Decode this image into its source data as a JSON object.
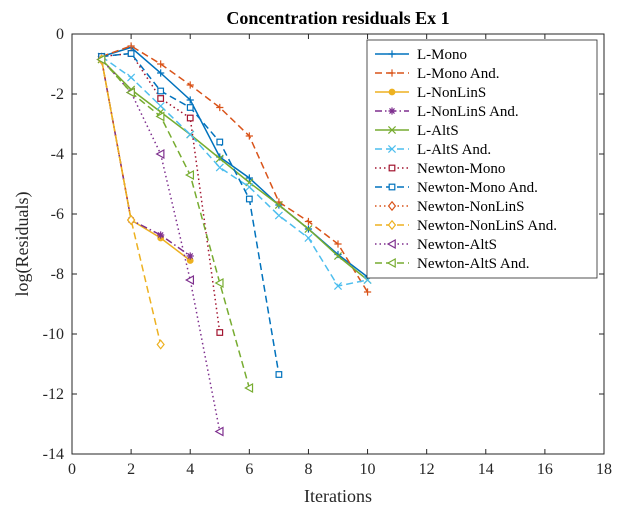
{
  "chart_data": {
    "type": "line",
    "title": "Concentration residuals Ex 1",
    "xlabel": "Iterations",
    "ylabel": "log(Residuals)",
    "xlim": [
      0,
      18
    ],
    "ylim": [
      -14,
      0
    ],
    "xticks": [
      "0",
      "2",
      "4",
      "6",
      "8",
      "10",
      "12",
      "14",
      "16",
      "18"
    ],
    "yticks": [
      "0",
      "-2",
      "-4",
      "-6",
      "-8",
      "-10",
      "-12",
      "-14"
    ],
    "grid": false,
    "legend_position": "top-right",
    "series": [
      {
        "name": "L-Mono",
        "color": "#0072BD",
        "dash": "solid",
        "marker": "plus",
        "x": [
          1,
          2,
          3,
          4,
          5,
          6,
          7,
          8,
          9,
          10
        ],
        "y": [
          -0.75,
          -0.45,
          -1.3,
          -2.2,
          -4.1,
          -4.8,
          -5.7,
          -6.5,
          -7.35,
          -8.1
        ]
      },
      {
        "name": "L-Mono And.",
        "color": "#D95319",
        "dash": "dashed",
        "marker": "plus",
        "x": [
          1,
          2,
          3,
          4,
          5,
          6,
          7,
          8,
          9,
          10
        ],
        "y": [
          -0.75,
          -0.4,
          -1.0,
          -1.7,
          -2.45,
          -3.4,
          -5.6,
          -6.25,
          -7.0,
          -8.6
        ]
      },
      {
        "name": "L-NonLinS",
        "color": "#EDB120",
        "dash": "solid",
        "marker": "dot",
        "x": [
          1,
          2,
          3,
          4
        ],
        "y": [
          -0.85,
          -6.2,
          -6.8,
          -7.55
        ]
      },
      {
        "name": "L-NonLinS And.",
        "color": "#7E2F8E",
        "dash": "dashdot",
        "marker": "star",
        "x": [
          1,
          2,
          3,
          4
        ],
        "y": [
          -0.85,
          -6.2,
          -6.7,
          -7.4
        ]
      },
      {
        "name": "L-AltS",
        "color": "#77AC30",
        "dash": "solid",
        "marker": "x",
        "x": [
          1,
          2,
          3,
          4,
          5,
          6,
          7,
          8,
          9,
          10
        ],
        "y": [
          -0.85,
          -1.85,
          -2.6,
          -3.35,
          -4.15,
          -4.95,
          -5.7,
          -6.5,
          -7.4,
          -8.2
        ]
      },
      {
        "name": "L-AltS And.",
        "color": "#4DBEEE",
        "dash": "dashed",
        "marker": "x",
        "x": [
          1,
          2,
          3,
          4,
          5,
          6,
          7,
          8,
          9,
          10
        ],
        "y": [
          -0.75,
          -1.45,
          -2.4,
          -3.35,
          -4.45,
          -5.1,
          -6.05,
          -6.8,
          -8.4,
          -8.2
        ]
      },
      {
        "name": "Newton-Mono",
        "color": "#A2142F",
        "dash": "dotted",
        "marker": "square",
        "x": [
          1,
          2,
          3,
          4,
          5
        ],
        "y": [
          -0.75,
          -0.65,
          -2.15,
          -2.8,
          -9.95
        ]
      },
      {
        "name": "Newton-Mono And.",
        "color": "#0072BD",
        "dash": "dashed",
        "marker": "square",
        "x": [
          1,
          2,
          3,
          4,
          5,
          6,
          7
        ],
        "y": [
          -0.75,
          -0.65,
          -1.9,
          -2.45,
          -3.6,
          -5.5,
          -11.35
        ]
      },
      {
        "name": "Newton-NonLinS",
        "color": "#D95319",
        "dash": "dotted",
        "marker": "diamond",
        "x": [
          1,
          2
        ],
        "y": [
          -0.85,
          -6.2
        ]
      },
      {
        "name": "Newton-NonLinS And.",
        "color": "#EDB120",
        "dash": "dashed",
        "marker": "diamond",
        "x": [
          1,
          2,
          3
        ],
        "y": [
          -0.85,
          -6.2,
          -10.35
        ]
      },
      {
        "name": "Newton-AltS",
        "color": "#7E2F8E",
        "dash": "dotted",
        "marker": "triangle-left",
        "x": [
          1,
          2,
          3,
          4,
          5
        ],
        "y": [
          -0.85,
          -1.95,
          -4.0,
          -8.2,
          -13.25
        ]
      },
      {
        "name": "Newton-AltS And.",
        "color": "#77AC30",
        "dash": "dashed",
        "marker": "triangle-left",
        "x": [
          1,
          2,
          3,
          4,
          5,
          6
        ],
        "y": [
          -0.85,
          -1.95,
          -2.75,
          -4.7,
          -8.3,
          -11.8
        ]
      }
    ]
  }
}
